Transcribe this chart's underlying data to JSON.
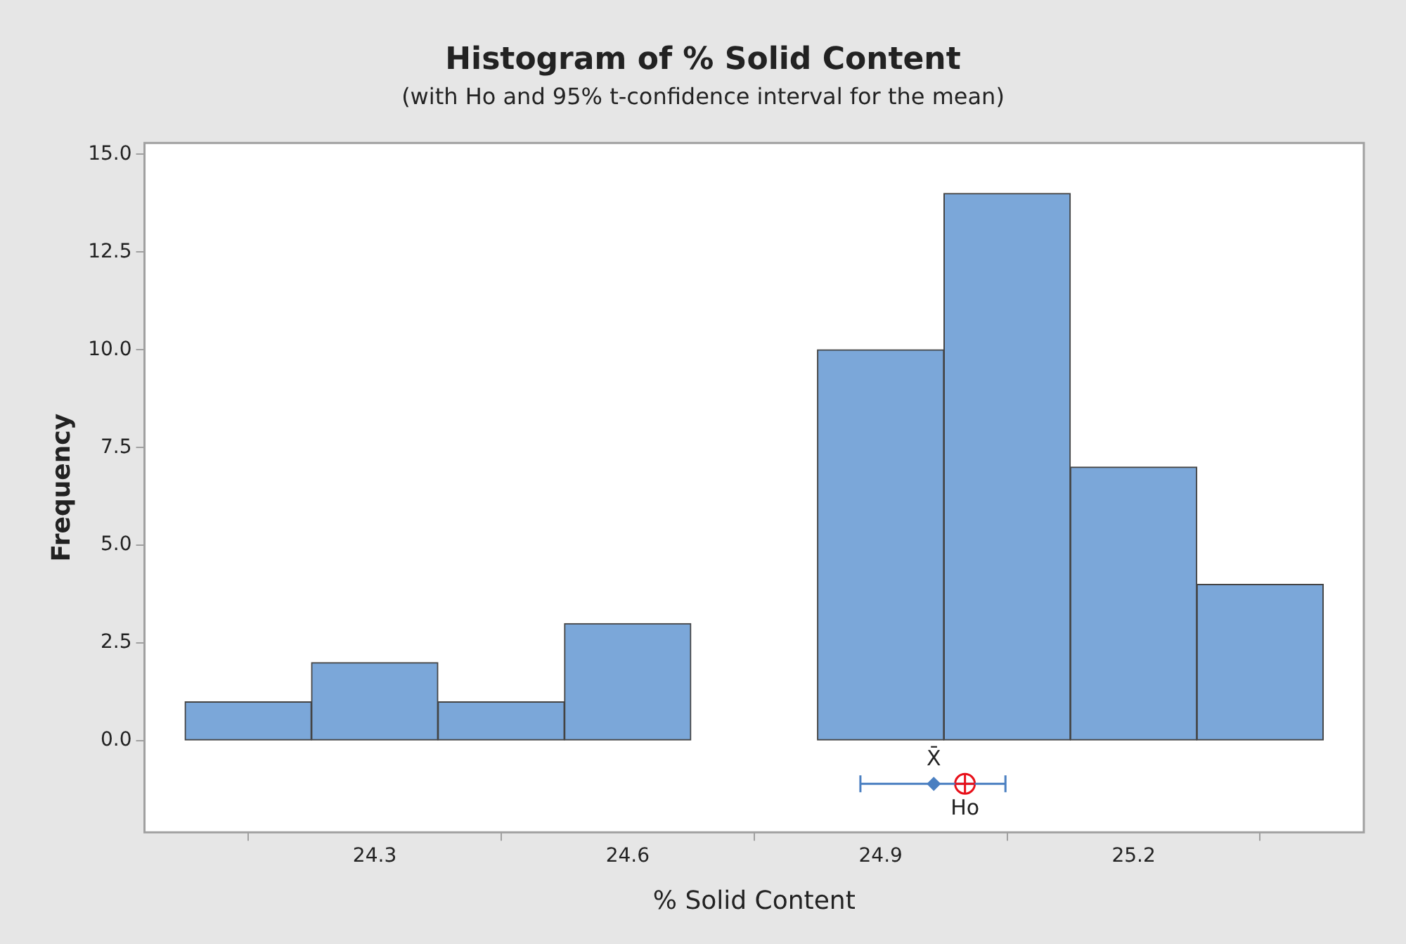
{
  "chart_data": {
    "type": "histogram",
    "title": "Histogram of % Solid Content",
    "subtitle": "(with Ho and 95% t-confidence interval for the mean)",
    "xlabel": "% Solid Content",
    "ylabel": "Frequency",
    "bins": [
      24.075,
      24.225,
      24.375,
      24.525,
      24.675,
      24.825,
      24.975,
      25.125,
      25.275,
      25.425
    ],
    "values": [
      1,
      2,
      1,
      3,
      0,
      10,
      14,
      7,
      4
    ],
    "color": "#7ba7d9",
    "series": [
      {
        "type": "scatter",
        "name": "X̄",
        "x": [
          24.963
        ],
        "values": [
          -1.1
        ],
        "xerrors": [
          [
            24.876,
            25.048
          ]
        ],
        "color": "#4a7fc1",
        "marker": "diamond"
      },
      {
        "type": "scatter",
        "name": "Ho",
        "x": [
          25.0
        ],
        "values": [
          -1.1
        ],
        "color": "#e8101a",
        "marker": "circle"
      }
    ],
    "xlim": [
      24.027,
      25.473
    ],
    "xticks": [
      24.3,
      24.6,
      24.9,
      25.2
    ],
    "ylim": [
      -2.34,
      15.29
    ],
    "yticks": [
      {
        "value": 0,
        "label": "0.0"
      },
      2.5,
      {
        "value": 5,
        "label": "5.0"
      },
      7.5,
      {
        "value": 10,
        "label": "10.0"
      },
      12.5,
      {
        "value": 15,
        "label": "15.0"
      }
    ],
    "legend": false
  }
}
